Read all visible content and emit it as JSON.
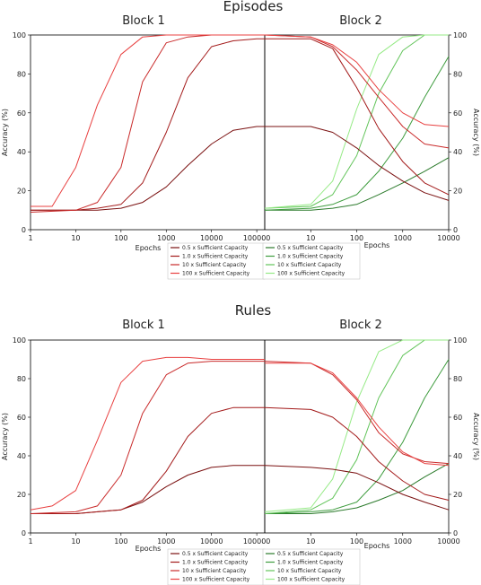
{
  "colors": {
    "red": [
      "#7a1010",
      "#a31a1a",
      "#c92a2a",
      "#e84040"
    ],
    "green": [
      "#2b7a2b",
      "#3e9c3e",
      "#62c45a",
      "#95ea85"
    ]
  },
  "chart_data": [
    {
      "type": "line",
      "title": "Episodes",
      "panels": [
        "Block 1",
        "Block 2"
      ],
      "xlabel": "Epochs",
      "ylabel": "Accuracy (%)",
      "xscale": "log",
      "ylim": [
        0,
        100
      ],
      "yticks": [
        "0",
        "20",
        "40",
        "60",
        "80",
        "100"
      ],
      "block1_xticks": [
        "1",
        "10",
        "100",
        "1000",
        "10000",
        "100000"
      ],
      "block2_xticks": [
        "10",
        "100",
        "1000",
        "10000"
      ],
      "legend": {
        "block1": [
          "0.5 x Sufficient Capacity",
          "1.0 x Sufficient Capacity",
          "10 x Sufficient Capacity",
          "100 x Sufficient Capacity"
        ],
        "block2": [
          "0.5 x Sufficient Capacity",
          "1.0 x Sufficient Capacity",
          "10 x Sufficient Capacity",
          "100 x Sufficient Capacity"
        ]
      },
      "block1_series": [
        {
          "x": [
            1,
            10,
            30,
            100,
            300,
            1000,
            3000,
            10000,
            30000,
            100000,
            150000
          ],
          "y": [
            10,
            10,
            10,
            11,
            14,
            22,
            33,
            44,
            51,
            53,
            53
          ]
        },
        {
          "x": [
            1,
            10,
            30,
            100,
            300,
            1000,
            3000,
            10000,
            30000,
            100000,
            150000
          ],
          "y": [
            10,
            10,
            11,
            13,
            24,
            50,
            78,
            94,
            97,
            98,
            98
          ]
        },
        {
          "x": [
            1,
            10,
            30,
            100,
            300,
            1000,
            3000,
            10000,
            30000,
            100000,
            150000
          ],
          "y": [
            9,
            10,
            14,
            32,
            76,
            96,
            99,
            100,
            100,
            100,
            100
          ]
        },
        {
          "x": [
            1,
            3,
            10,
            30,
            100,
            300,
            1000,
            10000,
            100000,
            150000
          ],
          "y": [
            12,
            12,
            32,
            64,
            90,
            99,
            100,
            100,
            100,
            100
          ]
        }
      ],
      "block2_red_series": [
        {
          "x": [
            1,
            10,
            30,
            100,
            300,
            1000,
            3000,
            10000
          ],
          "y": [
            53,
            53,
            50,
            42,
            33,
            25,
            19,
            15
          ]
        },
        {
          "x": [
            1,
            10,
            30,
            100,
            300,
            1000,
            3000,
            10000
          ],
          "y": [
            98,
            98,
            93,
            73,
            52,
            35,
            24,
            18
          ]
        },
        {
          "x": [
            1,
            10,
            30,
            100,
            300,
            1000,
            3000,
            10000
          ],
          "y": [
            100,
            99,
            94,
            82,
            68,
            53,
            44,
            42
          ]
        },
        {
          "x": [
            1,
            10,
            30,
            100,
            300,
            1000,
            3000,
            10000
          ],
          "y": [
            100,
            99,
            95,
            86,
            72,
            60,
            54,
            53
          ]
        }
      ],
      "block2_green_series": [
        {
          "x": [
            1,
            10,
            30,
            100,
            300,
            1000,
            3000,
            10000
          ],
          "y": [
            10,
            10,
            11,
            13,
            18,
            24,
            30,
            37
          ]
        },
        {
          "x": [
            1,
            10,
            30,
            100,
            300,
            1000,
            3000,
            10000
          ],
          "y": [
            10,
            11,
            13,
            18,
            30,
            47,
            68,
            89
          ]
        },
        {
          "x": [
            1,
            10,
            30,
            100,
            300,
            1000,
            3000,
            10000
          ],
          "y": [
            11,
            12,
            18,
            38,
            70,
            92,
            100,
            100
          ]
        },
        {
          "x": [
            1,
            10,
            30,
            100,
            300,
            1000,
            3000,
            10000
          ],
          "y": [
            11,
            13,
            25,
            62,
            90,
            99,
            100,
            100
          ]
        }
      ]
    },
    {
      "type": "line",
      "title": "Rules",
      "panels": [
        "Block 1",
        "Block 2"
      ],
      "xlabel": "Epochs",
      "ylabel": "Accuracy (%)",
      "xscale": "log",
      "ylim": [
        0,
        100
      ],
      "yticks": [
        "0",
        "20",
        "40",
        "60",
        "80",
        "100"
      ],
      "block1_xticks": [
        "1",
        "10",
        "100",
        "1000",
        "10000",
        "100000"
      ],
      "block2_xticks": [
        "10",
        "100",
        "1000",
        "10000"
      ],
      "legend": {
        "block1": [
          "0.5 x Sufficient Capacity",
          "1.0 x Sufficient Capacity",
          "10 x Sufficient Capacity",
          "100 x Sufficient Capacity"
        ],
        "block2": [
          "0.5 x Sufficient Capacity",
          "1.0 x Sufficient Capacity",
          "10 x Sufficient Capacity",
          "100 x Sufficient Capacity"
        ]
      },
      "block1_series": [
        {
          "x": [
            1,
            10,
            100,
            300,
            1000,
            3000,
            10000,
            30000,
            100000,
            150000
          ],
          "y": [
            10,
            10,
            12,
            16,
            24,
            30,
            34,
            35,
            35,
            35
          ]
        },
        {
          "x": [
            1,
            10,
            30,
            100,
            300,
            1000,
            3000,
            10000,
            30000,
            100000,
            150000
          ],
          "y": [
            10,
            10,
            11,
            12,
            17,
            32,
            50,
            62,
            65,
            65,
            65
          ]
        },
        {
          "x": [
            1,
            10,
            30,
            100,
            300,
            1000,
            3000,
            10000,
            100000,
            150000
          ],
          "y": [
            10,
            11,
            14,
            30,
            62,
            82,
            88,
            89,
            89,
            89
          ]
        },
        {
          "x": [
            1,
            3,
            10,
            30,
            100,
            300,
            1000,
            3000,
            10000,
            100000,
            150000
          ],
          "y": [
            12,
            14,
            22,
            48,
            78,
            89,
            91,
            91,
            90,
            90,
            90
          ]
        }
      ],
      "block2_red_series": [
        {
          "x": [
            1,
            10,
            30,
            100,
            300,
            1000,
            3000,
            10000
          ],
          "y": [
            35,
            34,
            33,
            31,
            26,
            20,
            16,
            12
          ]
        },
        {
          "x": [
            1,
            10,
            30,
            100,
            300,
            1000,
            3000,
            10000
          ],
          "y": [
            65,
            64,
            60,
            50,
            37,
            27,
            20,
            17
          ]
        },
        {
          "x": [
            1,
            10,
            30,
            100,
            300,
            1000,
            3000,
            10000
          ],
          "y": [
            89,
            88,
            82,
            69,
            52,
            41,
            37,
            36
          ]
        },
        {
          "x": [
            1,
            10,
            30,
            100,
            300,
            1000,
            3000,
            10000
          ],
          "y": [
            88,
            88,
            83,
            70,
            55,
            42,
            36,
            35
          ]
        }
      ],
      "block2_green_series": [
        {
          "x": [
            1,
            10,
            30,
            100,
            300,
            1000,
            3000,
            10000
          ],
          "y": [
            10,
            10,
            11,
            13,
            17,
            22,
            29,
            36
          ]
        },
        {
          "x": [
            1,
            10,
            30,
            100,
            300,
            1000,
            3000,
            10000
          ],
          "y": [
            10,
            11,
            12,
            16,
            28,
            47,
            70,
            90
          ]
        },
        {
          "x": [
            1,
            10,
            30,
            100,
            300,
            1000,
            3000,
            10000
          ],
          "y": [
            10,
            12,
            18,
            38,
            70,
            92,
            100,
            100
          ]
        },
        {
          "x": [
            1,
            10,
            30,
            100,
            300,
            1000,
            3000,
            10000
          ],
          "y": [
            11,
            13,
            28,
            68,
            94,
            100,
            100,
            100
          ]
        }
      ]
    }
  ]
}
